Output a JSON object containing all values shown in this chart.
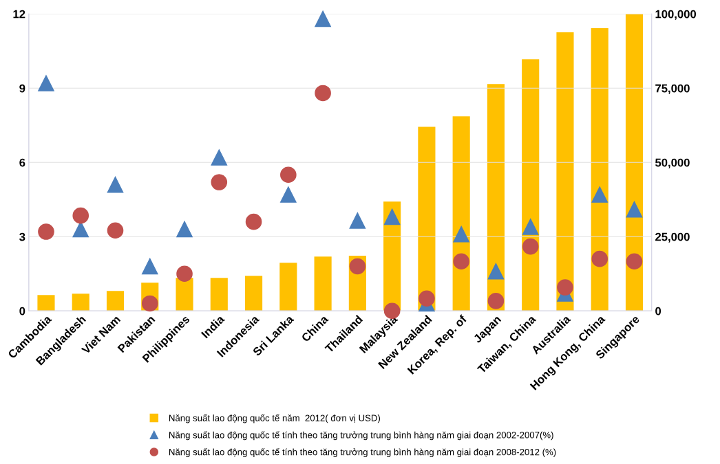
{
  "chart_data": {
    "type": "bar",
    "categories": [
      "Cambodia",
      "Bangladesh",
      "Viet Nam",
      "Pakistan",
      "Philippines",
      "India",
      "Indonesia",
      "Sri Lanka",
      "China",
      "Thailand",
      "Malaysia",
      "New Zealand",
      "Korea, Rep. of",
      "Japan",
      "Taiwan, China",
      "Australia",
      "Hong Kong, China",
      "Singapore"
    ],
    "series": [
      {
        "name": "Năng suất lao động quốc tế năm  2012( đơn vị USD)",
        "axis": "y2",
        "color": "#ffc000",
        "values": [
          5300,
          5800,
          6700,
          9500,
          11100,
          11100,
          11800,
          16200,
          18300,
          18600,
          36800,
          62000,
          65500,
          76400,
          84700,
          93800,
          95200,
          100000
        ]
      },
      {
        "name": "Năng suất lao động quốc tế tính theo tăng trưởng trung bình hàng năm giai đoạn 2002-2007(%)",
        "type": "scatter",
        "marker": "triangle",
        "color": "#4a7ebb",
        "values": [
          9.2,
          3.3,
          5.1,
          1.8,
          3.3,
          6.2,
          null,
          4.7,
          11.8,
          3.65,
          3.8,
          0.3,
          3.1,
          1.6,
          3.4,
          0.7,
          4.7,
          4.1
        ]
      },
      {
        "name": "Năng suất lao động quốc tế tính theo tăng trưởng trung bình hàng năm giai đoạn 2008-2012 (%)",
        "type": "scatter",
        "marker": "circle",
        "color": "#c0504d",
        "values": [
          3.2,
          3.85,
          3.25,
          0.3,
          1.5,
          5.2,
          3.6,
          5.5,
          8.8,
          1.8,
          0.0,
          0.5,
          2.0,
          0.4,
          2.6,
          0.95,
          2.1,
          2.0
        ]
      }
    ],
    "ylim": [
      0,
      12
    ],
    "yticks": [
      0,
      3,
      6,
      9,
      12
    ],
    "y2lim": [
      0,
      100000
    ],
    "y2ticks": [
      {
        "value": 0,
        "label": "0"
      },
      {
        "value": 25000,
        "label": "25,000"
      },
      {
        "value": 50000,
        "label": "50,000"
      },
      {
        "value": 75000,
        "label": "75,000"
      },
      {
        "value": 100000,
        "label": "100,000"
      }
    ],
    "grid": "y",
    "legend": "bottom"
  }
}
